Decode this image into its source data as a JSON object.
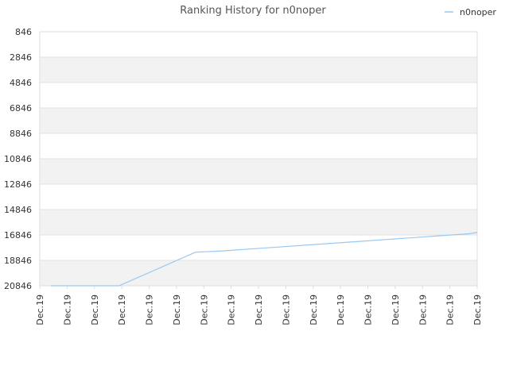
{
  "chart_data": {
    "type": "line",
    "title": "Ranking History for n0noper",
    "xlabel": "",
    "ylabel": "",
    "legend": {
      "position": "top-right"
    },
    "grid": true,
    "y_reversed": true,
    "ylim": [
      846,
      20846
    ],
    "y_ticks": [
      "846",
      "2846",
      "4846",
      "6846",
      "8846",
      "10846",
      "12846",
      "14846",
      "16846",
      "18846",
      "20846"
    ],
    "x_ticks": [
      "Dec.19",
      "Dec.19",
      "Dec.19",
      "Dec.19",
      "Dec.19",
      "Dec.19",
      "Dec.19",
      "Dec.19",
      "Dec.19",
      "Dec.19",
      "Dec.19",
      "Dec.19",
      "Dec.19",
      "Dec.19",
      "Dec.19",
      "Dec.19",
      "Dec.19"
    ],
    "series": [
      {
        "name": "n0noper",
        "color": "#99c8f0",
        "x": [
          0.4,
          2.9,
          5.7,
          6.7,
          7.7,
          8.7,
          9.7,
          10.7,
          11.7,
          12.7,
          13.7,
          14.7,
          15.7,
          16.0
        ],
        "values": [
          20846,
          20846,
          18200,
          18100,
          17950,
          17800,
          17650,
          17500,
          17350,
          17200,
          17050,
          16900,
          16750,
          16650
        ]
      }
    ]
  }
}
